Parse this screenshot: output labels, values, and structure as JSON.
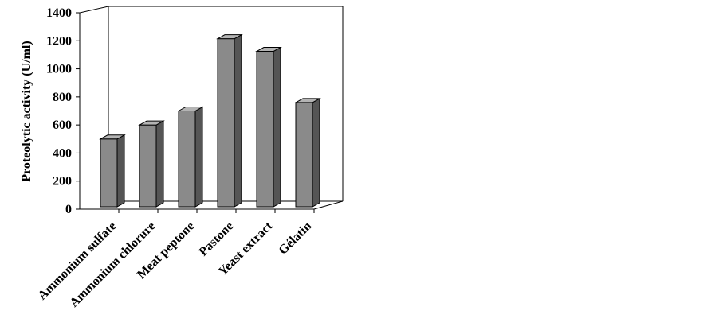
{
  "chart_data": {
    "type": "bar",
    "style": "3d-column",
    "title": "",
    "xlabel": "",
    "ylabel": "Proteolytic activity (U/ml)",
    "ylim": [
      0,
      1400
    ],
    "yticks": [
      0,
      200,
      400,
      600,
      800,
      1000,
      1200,
      1400
    ],
    "categories": [
      "Ammonium sulfate",
      "Ammonium chlorure",
      "Meat peptone",
      "Pastone",
      "Yeast extract",
      "Gélatin"
    ],
    "values": [
      500,
      600,
      700,
      1215,
      1125,
      760
    ],
    "grid": false,
    "legend": "none",
    "colors": {
      "bar_front": "#8a8a8a",
      "bar_side": "#555555",
      "bar_top": "#b4b4b4",
      "axis": "#000000"
    }
  }
}
